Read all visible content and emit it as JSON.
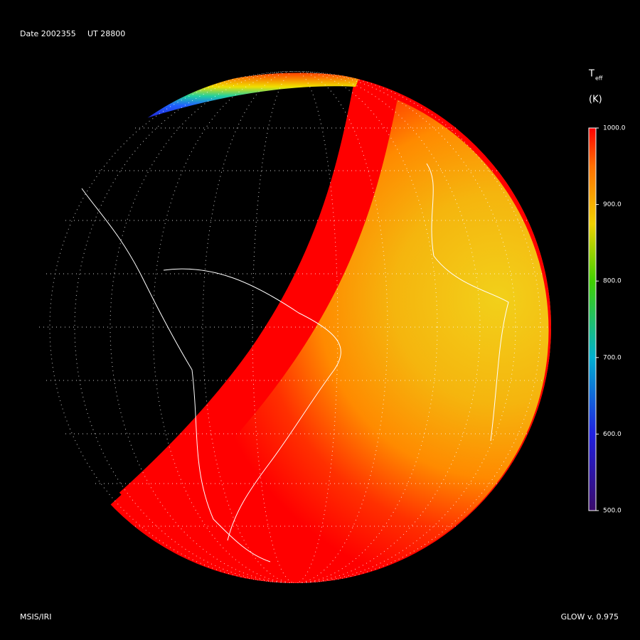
{
  "header": {
    "date": "Date 2002355",
    "ut": "UT 28800"
  },
  "colorbar": {
    "symbol": "T",
    "subscript": "eff",
    "unit": "(K)",
    "range": [
      500,
      1000
    ],
    "ticks": [
      {
        "value": 1000,
        "label": "1000.0"
      },
      {
        "value": 900,
        "label": "900.0"
      },
      {
        "value": 800,
        "label": "800.0"
      },
      {
        "value": 700,
        "label": "700.0"
      },
      {
        "value": 600,
        "label": "600.0"
      },
      {
        "value": 500,
        "label": "500.0"
      }
    ]
  },
  "footer": {
    "left": "MSIS/IRI",
    "right": "GLOW v. 0.975"
  }
}
